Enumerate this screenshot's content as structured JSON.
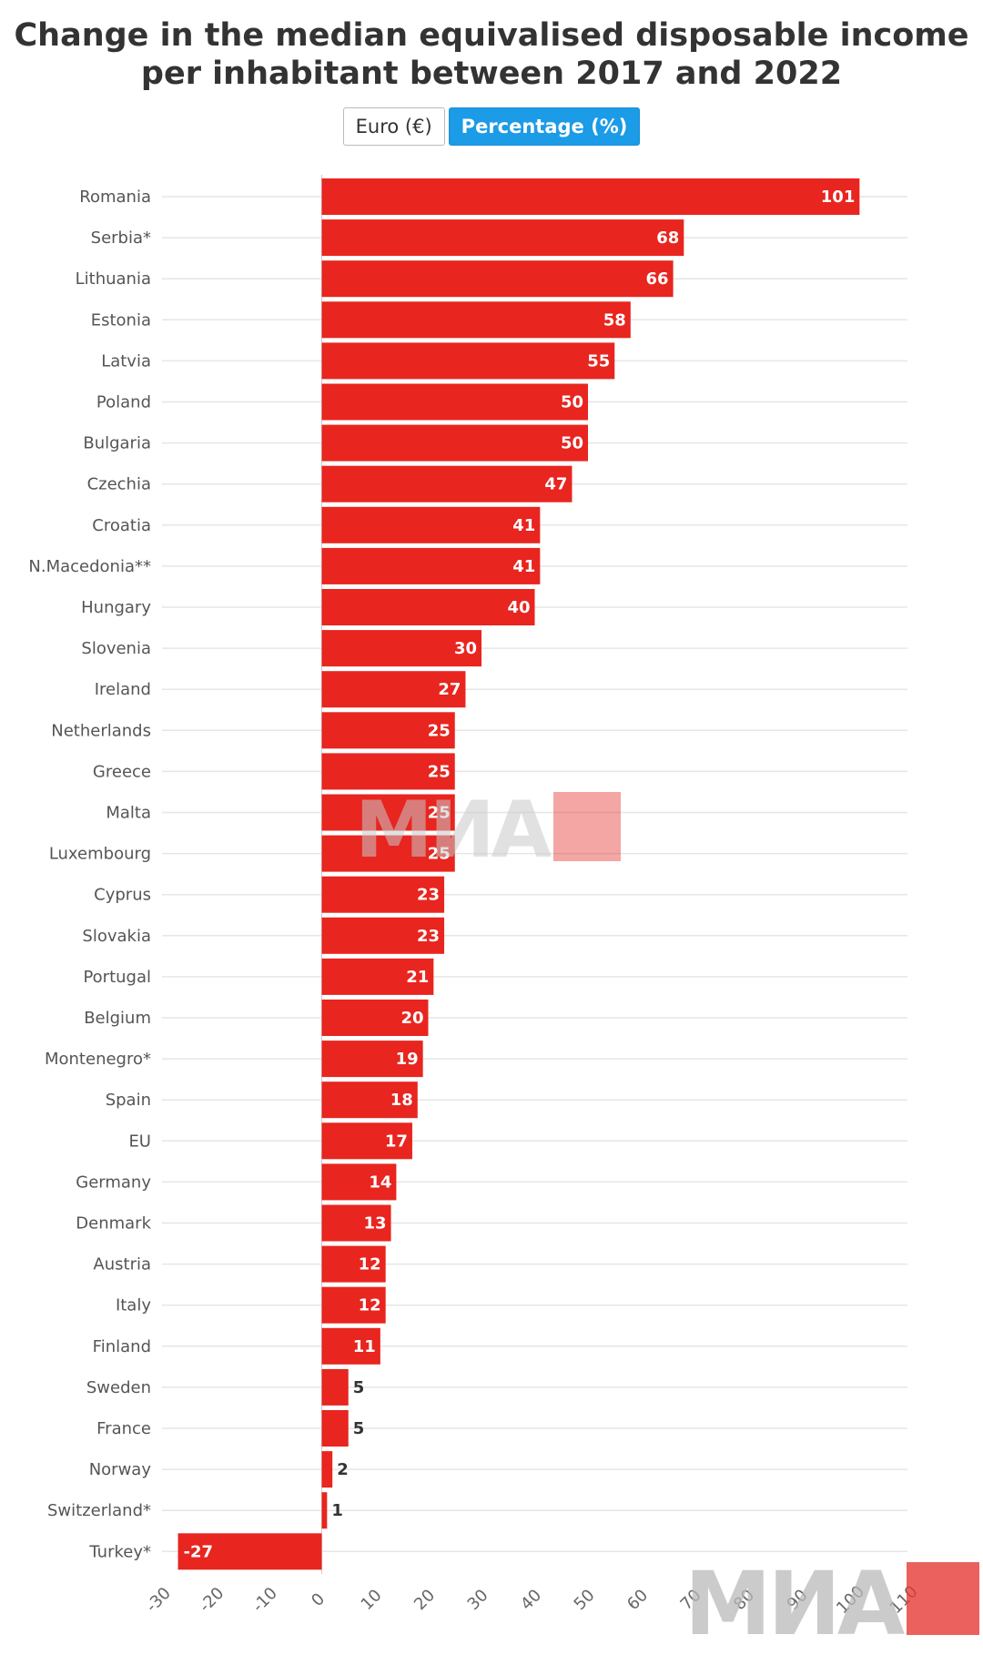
{
  "title_line1": "Change in the median equivalised disposable income",
  "title_line2": "per inhabitant between 2017 and 2022",
  "toggle": {
    "euro_label": "Euro (€)",
    "percentage_label": "Percentage (%)",
    "selected": "percentage"
  },
  "watermark": "МИА",
  "colors": {
    "bar": "#e8251f",
    "grid": "#e6e6e6",
    "accent": "#1c9be6"
  },
  "chart_data": {
    "type": "bar",
    "orientation": "horizontal",
    "title": "Change in the median equivalised disposable income per inhabitant between 2017 and 2022",
    "xlabel": "",
    "ylabel": "",
    "xlim": [
      -30,
      110
    ],
    "ticks": [
      -30,
      -20,
      -10,
      0,
      10,
      20,
      30,
      40,
      50,
      60,
      70,
      80,
      90,
      100,
      110
    ],
    "tick_labels": [
      "-30",
      "-20",
      "-10",
      "0",
      "10",
      "20",
      "30",
      "40",
      "50",
      "60",
      "70",
      "80",
      "90",
      "100",
      "110"
    ],
    "grid": true,
    "categories": [
      "Romania",
      "Serbia*",
      "Lithuania",
      "Estonia",
      "Latvia",
      "Poland",
      "Bulgaria",
      "Czechia",
      "Croatia",
      "N.Macedonia**",
      "Hungary",
      "Slovenia",
      "Ireland",
      "Netherlands",
      "Greece",
      "Malta",
      "Luxembourg",
      "Cyprus",
      "Slovakia",
      "Portugal",
      "Belgium",
      "Montenegro*",
      "Spain",
      "EU",
      "Germany",
      "Denmark",
      "Austria",
      "Italy",
      "Finland",
      "Sweden",
      "France",
      "Norway",
      "Switzerland*",
      "Turkey*"
    ],
    "values": [
      101,
      68,
      66,
      58,
      55,
      50,
      50,
      47,
      41,
      41,
      40,
      30,
      27,
      25,
      25,
      25,
      25,
      23,
      23,
      21,
      20,
      19,
      18,
      17,
      14,
      13,
      12,
      12,
      11,
      5,
      5,
      2,
      1,
      -27
    ],
    "value_labels": [
      "101",
      "68",
      "66",
      "58",
      "55",
      "50",
      "50",
      "47",
      "41",
      "41",
      "40",
      "30",
      "27",
      "25",
      "25",
      "25",
      "25",
      "23",
      "23",
      "21",
      "20",
      "19",
      "18",
      "17",
      "14",
      "13",
      "12",
      "12",
      "11",
      "5",
      "5",
      "2",
      "1",
      "-27"
    ]
  }
}
